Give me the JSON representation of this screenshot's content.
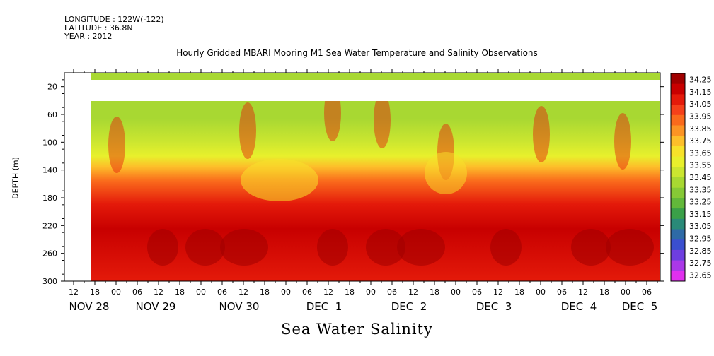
{
  "header": {
    "longitude": "LONGITUDE : 122W(-122)",
    "latitude": "LATITUDE : 36.8N",
    "year": "YEAR : 2012"
  },
  "chart_data": {
    "type": "heatmap",
    "title": "Hourly Gridded MBARI Mooring M1 Sea Water Temperature and Salinity Observations",
    "bottom_label": "Sea Water Salinity",
    "ylabel": "DEPTH (m)",
    "ylim": [
      300,
      0
    ],
    "y_ticks": [
      20,
      60,
      100,
      140,
      180,
      220,
      260,
      300
    ],
    "x_hour_ticks": [
      "12",
      "18",
      "00",
      "06",
      "12",
      "18",
      "00",
      "06",
      "12",
      "18",
      "00",
      "06",
      "12",
      "18",
      "00",
      "06",
      "12",
      "18",
      "00",
      "06",
      "12",
      "18",
      "00",
      "06",
      "12",
      "18",
      "00",
      "06",
      "12",
      "18",
      "00",
      "06"
    ],
    "x_day_labels": [
      "NOV 28",
      "NOV 29",
      "NOV 30",
      "DEC  1",
      "DEC  2",
      "DEC  3",
      "DEC  4",
      "DEC  5"
    ],
    "colorbar": {
      "levels": [
        34.25,
        34.15,
        34.05,
        33.95,
        33.85,
        33.75,
        33.65,
        33.55,
        33.45,
        33.35,
        33.25,
        33.15,
        33.05,
        32.95,
        32.85,
        32.75,
        32.65
      ],
      "colors": [
        "#a00000",
        "#c80000",
        "#e41a0a",
        "#f5401a",
        "#fa6a1c",
        "#fc9424",
        "#fdbf2a",
        "#f7e22a",
        "#e8f02c",
        "#cbe630",
        "#a8d832",
        "#86c936",
        "#62b83a",
        "#3aa048",
        "#2a8a78",
        "#2e6aa6",
        "#3a4fcf",
        "#6e3ee0",
        "#aa38e8",
        "#e030ee"
      ]
    },
    "data_gaps": [
      {
        "description": "no data before first sample",
        "hours": [
          0,
          7
        ],
        "depth": [
          0,
          300
        ]
      },
      {
        "description": "missing depth band",
        "hours": [
          7,
          176
        ],
        "depth": [
          15,
          40
        ]
      }
    ],
    "surface_layer_salinity_approx": 33.4,
    "depth_ranges": [
      {
        "depth": [
          40,
          100
        ],
        "salinity_approx": 33.45
      },
      {
        "depth": [
          100,
          160
        ],
        "salinity_approx": 33.7
      },
      {
        "depth": [
          160,
          230
        ],
        "salinity_approx": 33.95
      },
      {
        "depth": [
          230,
          300
        ],
        "salinity_approx": 34.1
      }
    ]
  }
}
